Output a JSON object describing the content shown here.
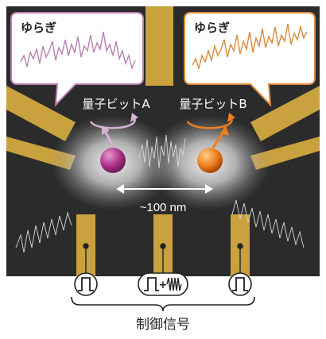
{
  "bubbles": {
    "left_title": "ゆらぎ",
    "right_title": "ゆらぎ"
  },
  "qubits": {
    "a_label": "量子ビットA",
    "b_label": "量子ビットB",
    "a_color": "#b0338c",
    "b_color": "#f07f1e",
    "a_trace_color": "#b980b0",
    "b_trace_color": "#d98a3a"
  },
  "distance_label": "~100 nm",
  "control": {
    "label": "制御信号",
    "plus_sign": "+"
  },
  "colors": {
    "background": "#2b2b2b",
    "electrode": "#c9a13e",
    "arrow_a": "#d7b2d4",
    "arrow_b": "#f07f1e"
  }
}
